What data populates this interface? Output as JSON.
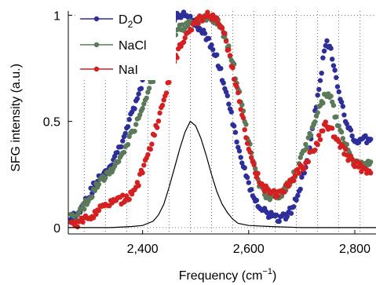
{
  "chart_data": {
    "type": "scatter",
    "xlabel": "Frequency (cm",
    "xlabel_sup": "−1",
    "xlabel_suffix": ")",
    "ylabel": "SFG intensity (a.u.)",
    "xlim": [
      2260,
      2840
    ],
    "ylim": [
      -0.03,
      1.02
    ],
    "x_ticks": [
      2400,
      2600,
      2800
    ],
    "x_tick_labels": [
      "2,400",
      "2,600",
      "2,800"
    ],
    "y_ticks": [
      0,
      0.5,
      1
    ],
    "y_tick_labels": [
      "0",
      "0.5",
      "1"
    ],
    "x_grid": [
      2290,
      2330,
      2370,
      2410,
      2450,
      2490,
      2530,
      2570,
      2610,
      2650,
      2690,
      2730,
      2770,
      2810
    ],
    "y_grid": [
      0,
      1
    ],
    "legend_position": "top-left",
    "series": [
      {
        "name": "D2O",
        "legend_main": "D",
        "legend_sub": "2",
        "legend_tail": "O",
        "color": "#2e2e9a",
        "style": "markers",
        "x": [
          2265,
          2275,
          2285,
          2300,
          2315,
          2330,
          2345,
          2360,
          2375,
          2390,
          2405,
          2420,
          2435,
          2450,
          2465,
          2480,
          2495,
          2510,
          2525,
          2540,
          2555,
          2570,
          2585,
          2600,
          2615,
          2630,
          2645,
          2660,
          2675,
          2690,
          2705,
          2720,
          2735,
          2745,
          2755,
          2770,
          2785,
          2800,
          2815,
          2830
        ],
        "values": [
          0.06,
          0.05,
          0.1,
          0.16,
          0.22,
          0.26,
          0.32,
          0.4,
          0.5,
          0.6,
          0.72,
          0.82,
          0.9,
          0.96,
          0.99,
          1.0,
          0.98,
          0.93,
          0.88,
          0.8,
          0.66,
          0.5,
          0.34,
          0.2,
          0.12,
          0.08,
          0.05,
          0.04,
          0.06,
          0.14,
          0.26,
          0.45,
          0.7,
          0.87,
          0.83,
          0.65,
          0.48,
          0.4,
          0.42,
          0.4
        ]
      },
      {
        "name": "NaCl",
        "legend_main": "NaCl",
        "color": "#5a7a5a",
        "style": "markers",
        "x": [
          2265,
          2275,
          2285,
          2300,
          2315,
          2330,
          2345,
          2360,
          2375,
          2390,
          2405,
          2420,
          2435,
          2450,
          2465,
          2480,
          2495,
          2510,
          2525,
          2540,
          2555,
          2570,
          2585,
          2600,
          2615,
          2630,
          2645,
          2660,
          2675,
          2690,
          2705,
          2720,
          2735,
          2745,
          2755,
          2770,
          2785,
          2800,
          2815,
          2830
        ],
        "values": [
          0.05,
          0.04,
          0.08,
          0.14,
          0.2,
          0.24,
          0.28,
          0.34,
          0.42,
          0.5,
          0.6,
          0.7,
          0.8,
          0.88,
          0.93,
          0.95,
          0.96,
          0.98,
          0.99,
          0.97,
          0.9,
          0.78,
          0.6,
          0.4,
          0.24,
          0.16,
          0.14,
          0.15,
          0.2,
          0.27,
          0.36,
          0.46,
          0.57,
          0.64,
          0.6,
          0.48,
          0.38,
          0.31,
          0.3,
          0.29
        ]
      },
      {
        "name": "NaI",
        "legend_main": "NaI",
        "color": "#d42020",
        "style": "markers",
        "x": [
          2265,
          2275,
          2285,
          2300,
          2315,
          2330,
          2345,
          2360,
          2375,
          2390,
          2405,
          2420,
          2435,
          2450,
          2465,
          2480,
          2495,
          2510,
          2525,
          2540,
          2555,
          2570,
          2585,
          2600,
          2615,
          2630,
          2645,
          2660,
          2675,
          2690,
          2705,
          2720,
          2735,
          2745,
          2755,
          2770,
          2785,
          2800,
          2815,
          2830
        ],
        "values": [
          0.02,
          0.02,
          0.03,
          0.05,
          0.08,
          0.1,
          0.12,
          0.13,
          0.15,
          0.2,
          0.3,
          0.42,
          0.56,
          0.7,
          0.82,
          0.9,
          0.96,
          0.98,
          1.0,
          0.98,
          0.9,
          0.75,
          0.56,
          0.38,
          0.25,
          0.18,
          0.16,
          0.17,
          0.2,
          0.25,
          0.3,
          0.36,
          0.43,
          0.48,
          0.47,
          0.4,
          0.34,
          0.3,
          0.28,
          0.27
        ]
      },
      {
        "name": "",
        "color": "#000000",
        "style": "line",
        "x": [
          2260,
          2300,
          2340,
          2380,
          2400,
          2420,
          2430,
          2440,
          2450,
          2460,
          2470,
          2480,
          2490,
          2500,
          2510,
          2520,
          2530,
          2540,
          2550,
          2560,
          2570,
          2580,
          2600,
          2640,
          2700,
          2760,
          2840
        ],
        "values": [
          0.0,
          0.0,
          0.0,
          0.005,
          0.01,
          0.03,
          0.06,
          0.11,
          0.19,
          0.28,
          0.37,
          0.45,
          0.5,
          0.48,
          0.42,
          0.34,
          0.25,
          0.17,
          0.11,
          0.07,
          0.04,
          0.02,
          0.01,
          0.005,
          0.0,
          0.0,
          0.0
        ]
      }
    ]
  }
}
